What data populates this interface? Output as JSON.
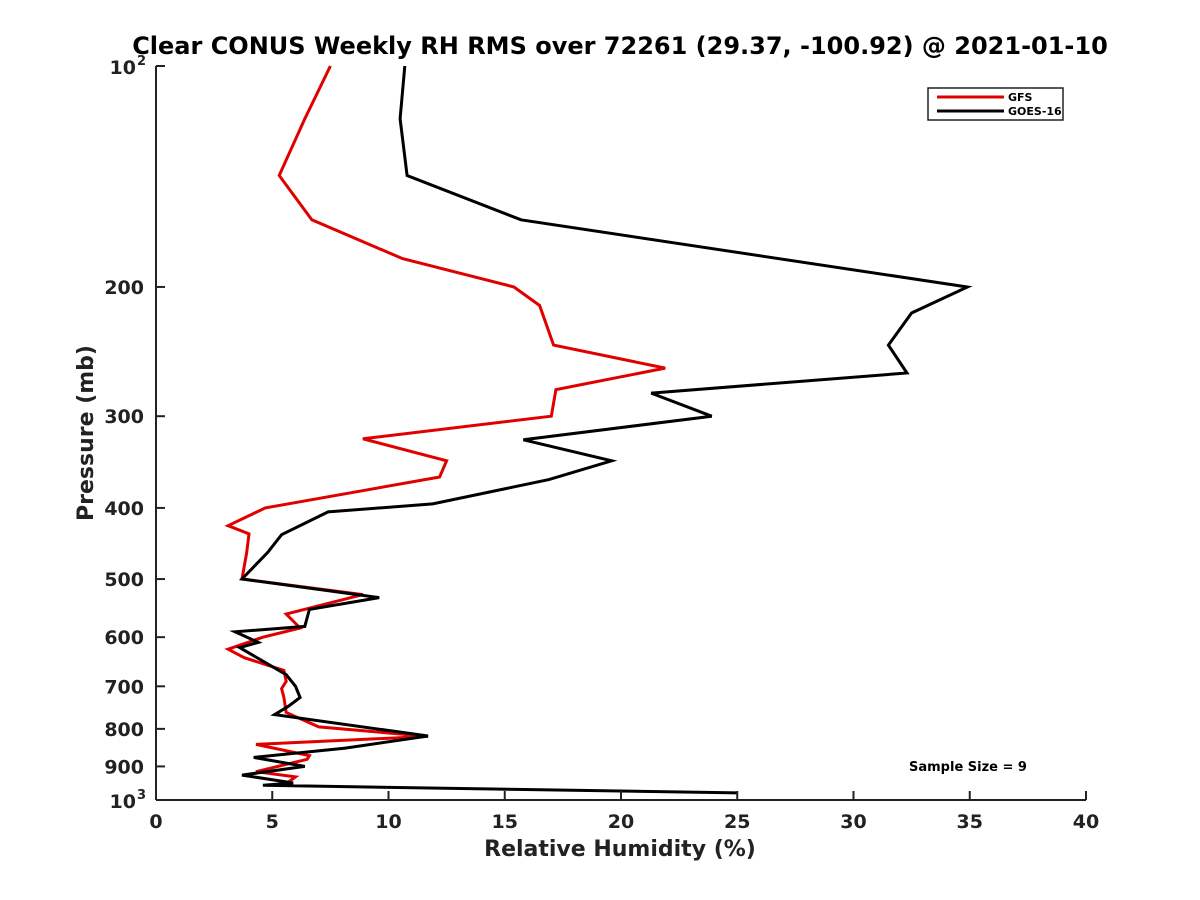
{
  "chart_data": {
    "type": "line",
    "title": "Clear CONUS Weekly RH RMS over 72261 (29.37, -100.92) @ 2021-01-10",
    "xlabel": "Relative Humidity (%)",
    "ylabel": "Pressure (mb)",
    "xlim": [
      0,
      40
    ],
    "ylim": [
      100,
      1000
    ],
    "y_scale": "log",
    "y_reversed": true,
    "x_ticks": [
      0,
      5,
      10,
      15,
      20,
      25,
      30,
      35,
      40
    ],
    "x_tick_labels": [
      "0",
      "5",
      "10",
      "15",
      "20",
      "25",
      "30",
      "35",
      "40"
    ],
    "y_ticks": [
      100,
      200,
      300,
      400,
      500,
      600,
      700,
      800,
      900,
      1000
    ],
    "y_tick_labels": [
      {
        "base": "10",
        "sup": "2"
      },
      {
        "base": "200",
        "sup": ""
      },
      {
        "base": "300",
        "sup": ""
      },
      {
        "base": "400",
        "sup": ""
      },
      {
        "base": "500",
        "sup": ""
      },
      {
        "base": "600",
        "sup": ""
      },
      {
        "base": "700",
        "sup": ""
      },
      {
        "base": "800",
        "sup": ""
      },
      {
        "base": "900",
        "sup": ""
      },
      {
        "base": "10",
        "sup": "3"
      }
    ],
    "grid": false,
    "legend_position": "top-right",
    "annotation": "Sample Size = 9",
    "series": [
      {
        "name": "GFS",
        "color": "#e00000",
        "x": [
          7.5,
          6.4,
          5.3,
          6.7,
          10.6,
          15.4,
          16.5,
          17.1,
          21.9,
          17.2,
          17.0,
          8.9,
          12.5,
          12.2,
          4.7,
          3.1,
          4.0,
          3.9,
          3.7,
          8.9,
          5.6,
          6.2,
          4.6,
          3.1,
          3.8,
          5.5,
          5.6,
          5.4,
          5.5,
          5.6,
          7.0,
          11.7,
          4.3,
          6.6,
          6.5,
          4.3,
          6.0,
          5.5
        ],
        "y": [
          100,
          118,
          141,
          162,
          183,
          200,
          212,
          240,
          258,
          276,
          300,
          322,
          345,
          363,
          400,
          423,
          434,
          460,
          500,
          525,
          558,
          583,
          600,
          623,
          640,
          666,
          689,
          705,
          725,
          760,
          795,
          819,
          840,
          870,
          880,
          915,
          930,
          955
        ]
      },
      {
        "name": "GOES-16",
        "color": "#000000",
        "x": [
          10.7,
          10.5,
          10.8,
          15.7,
          34.9,
          32.5,
          31.5,
          32.3,
          21.3,
          23.9,
          15.8,
          19.6,
          16.9,
          11.9,
          7.4,
          5.4,
          4.8,
          3.7,
          9.6,
          6.6,
          6.4,
          3.4,
          4.4,
          3.6,
          5.6,
          6.0,
          6.2,
          5.7,
          5.1,
          11.7,
          8.1,
          4.2,
          6.4,
          3.7,
          5.9,
          4.6,
          25.0
        ],
        "y": [
          100,
          118,
          141,
          162,
          200,
          217,
          240,
          262,
          279,
          300,
          323,
          345,
          366,
          395,
          405,
          435,
          460,
          500,
          530,
          550,
          580,
          590,
          610,
          620,
          675,
          700,
          725,
          745,
          765,
          818,
          850,
          875,
          900,
          925,
          948,
          955,
          978
        ]
      }
    ]
  }
}
